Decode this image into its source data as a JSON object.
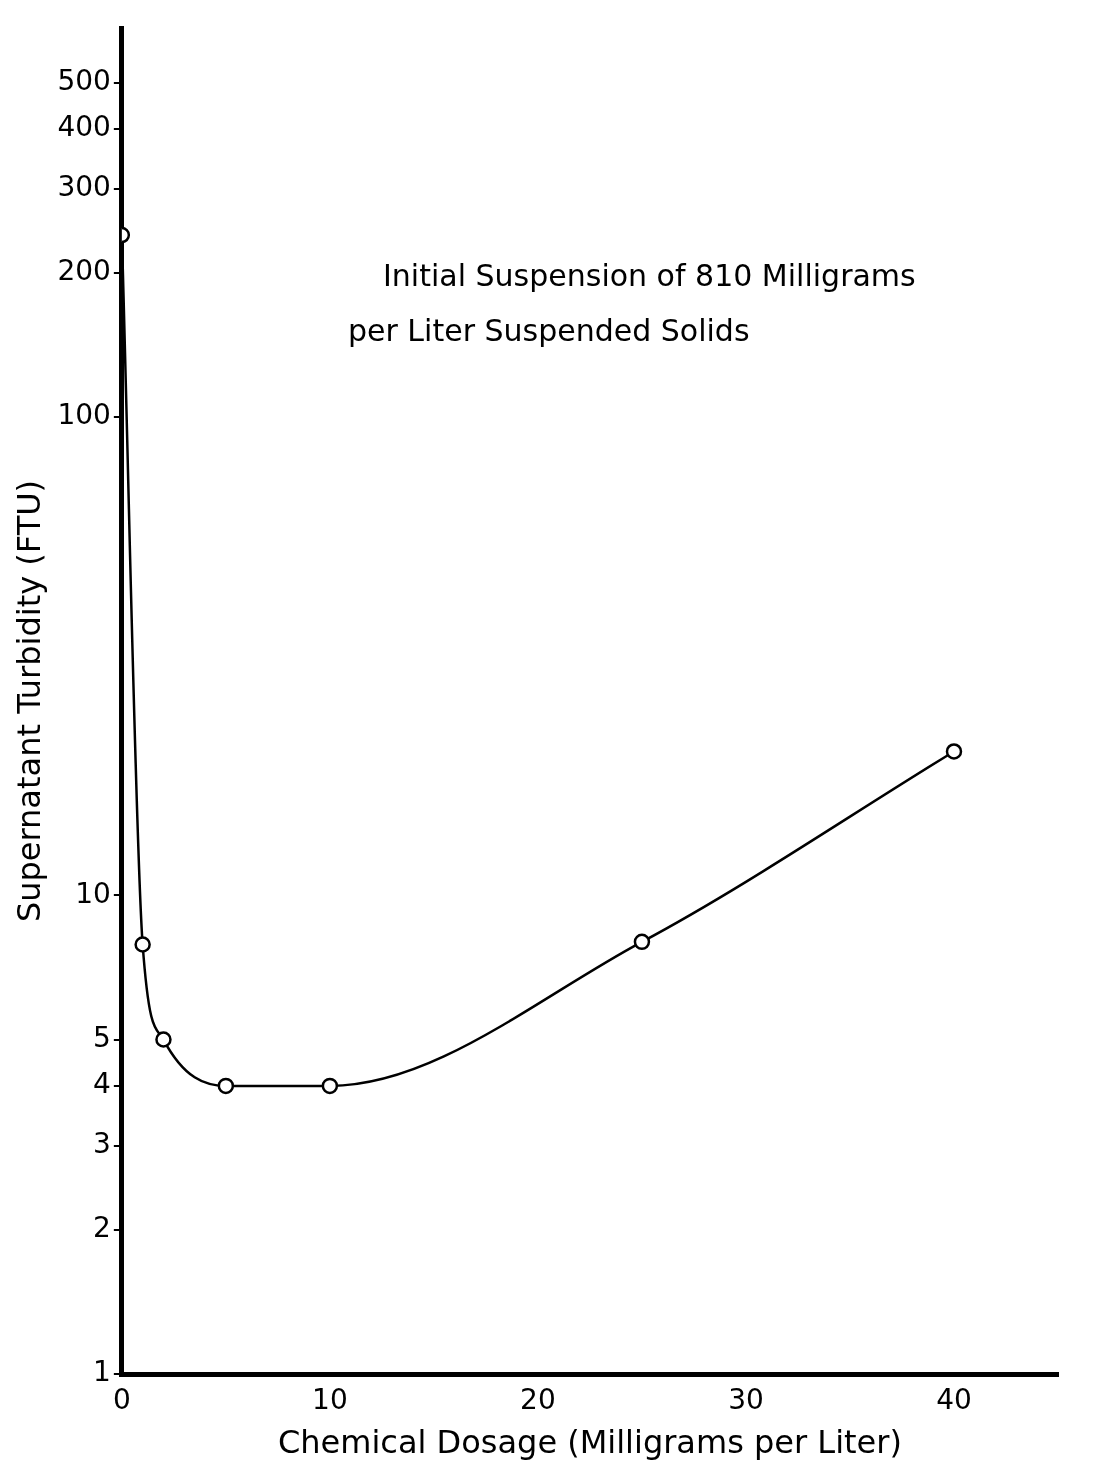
{
  "chart_data": {
    "type": "line",
    "xlabel": "Chemical Dosage (Milligrams per Liter)",
    "ylabel": "Supernatant Turbidity (FTU)",
    "annotations": [
      "Initial Suspension of 810 Milligrams per Liter Suspended Solids"
    ],
    "x": [
      0,
      1,
      2,
      5,
      10,
      25,
      40
    ],
    "series": [
      {
        "color": "#000000",
        "values": [
          240,
          7.9,
          5,
          4,
          4,
          8,
          20
        ]
      }
    ],
    "xlim": [
      0,
      45
    ],
    "xticks": [
      0,
      10,
      20,
      30,
      40
    ],
    "ylim": [
      1,
      650
    ],
    "yticks": [
      1,
      2,
      3,
      4,
      5,
      10,
      100,
      200,
      300,
      400,
      500
    ],
    "log": "y",
    "grid": false,
    "legend": false,
    "marker": "circle",
    "line_style": "solid"
  }
}
